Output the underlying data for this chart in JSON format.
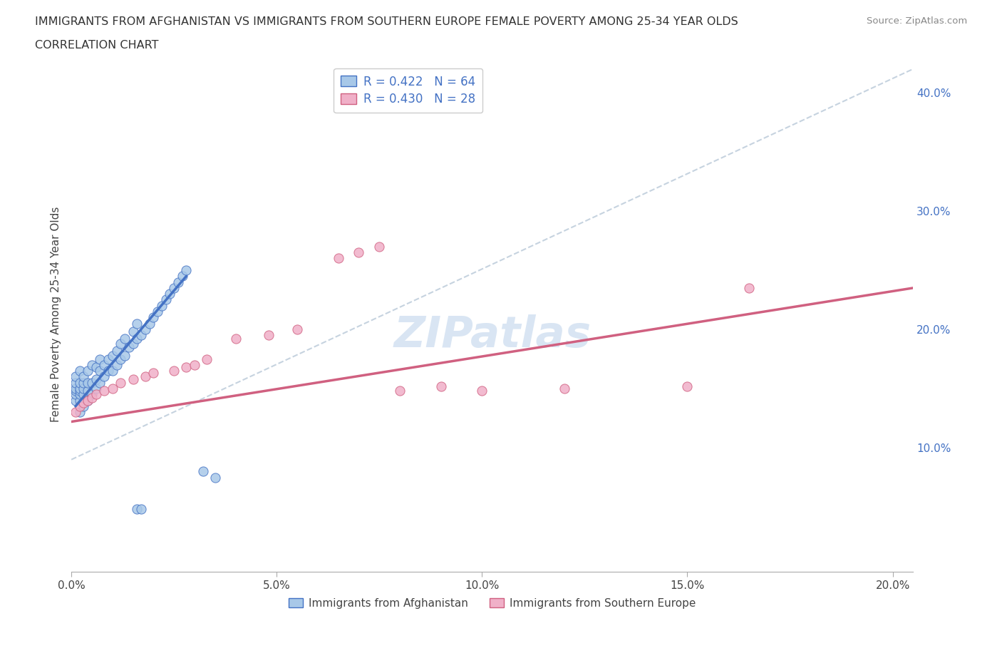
{
  "title_line1": "IMMIGRANTS FROM AFGHANISTAN VS IMMIGRANTS FROM SOUTHERN EUROPE FEMALE POVERTY AMONG 25-34 YEAR OLDS",
  "title_line2": "CORRELATION CHART",
  "source_text": "Source: ZipAtlas.com",
  "ylabel": "Female Poverty Among 25-34 Year Olds",
  "xlim": [
    0.0,
    0.205
  ],
  "ylim": [
    -0.005,
    0.43
  ],
  "xticks": [
    0.0,
    0.05,
    0.1,
    0.15,
    0.2
  ],
  "yticks": [
    0.1,
    0.2,
    0.3,
    0.4
  ],
  "ytick_labels": [
    "10.0%",
    "20.0%",
    "30.0%",
    "40.0%"
  ],
  "xtick_labels": [
    "0.0%",
    "5.0%",
    "10.0%",
    "15.0%",
    "20.0%"
  ],
  "r_afghanistan": 0.422,
  "n_afghanistan": 64,
  "r_southern_europe": 0.43,
  "n_southern_europe": 28,
  "color_afghanistan": "#a8c8e8",
  "color_southern_europe": "#f0b0c8",
  "color_trend_afghanistan": "#4472C4",
  "color_trend_southern_europe": "#d06080",
  "color_dashed": "#b8c8d8",
  "watermark": "ZIPatlas",
  "legend_label_1": "Immigrants from Afghanistan",
  "legend_label_2": "Immigrants from Southern Europe",
  "afg_x": [
    0.001,
    0.001,
    0.001,
    0.001,
    0.001,
    0.001,
    0.002,
    0.002,
    0.002,
    0.002,
    0.002,
    0.002,
    0.002,
    0.003,
    0.003,
    0.003,
    0.003,
    0.003,
    0.004,
    0.004,
    0.004,
    0.004,
    0.005,
    0.005,
    0.005,
    0.006,
    0.006,
    0.006,
    0.007,
    0.007,
    0.007,
    0.008,
    0.008,
    0.009,
    0.009,
    0.01,
    0.01,
    0.011,
    0.011,
    0.012,
    0.012,
    0.013,
    0.013,
    0.014,
    0.015,
    0.015,
    0.016,
    0.016,
    0.017,
    0.018,
    0.019,
    0.02,
    0.021,
    0.022,
    0.023,
    0.024,
    0.025,
    0.026,
    0.027,
    0.028,
    0.016,
    0.017,
    0.032,
    0.035
  ],
  "afg_y": [
    0.14,
    0.145,
    0.148,
    0.15,
    0.155,
    0.16,
    0.13,
    0.14,
    0.145,
    0.148,
    0.15,
    0.155,
    0.165,
    0.135,
    0.145,
    0.15,
    0.155,
    0.16,
    0.14,
    0.148,
    0.155,
    0.165,
    0.145,
    0.155,
    0.17,
    0.15,
    0.158,
    0.168,
    0.155,
    0.165,
    0.175,
    0.16,
    0.17,
    0.165,
    0.175,
    0.165,
    0.178,
    0.17,
    0.182,
    0.175,
    0.188,
    0.178,
    0.192,
    0.185,
    0.188,
    0.198,
    0.192,
    0.205,
    0.195,
    0.2,
    0.205,
    0.21,
    0.215,
    0.22,
    0.225,
    0.23,
    0.235,
    0.24,
    0.245,
    0.25,
    0.048,
    0.048,
    0.08,
    0.075
  ],
  "seu_x": [
    0.001,
    0.002,
    0.003,
    0.004,
    0.005,
    0.006,
    0.008,
    0.01,
    0.012,
    0.015,
    0.018,
    0.02,
    0.025,
    0.028,
    0.03,
    0.033,
    0.04,
    0.048,
    0.055,
    0.065,
    0.07,
    0.075,
    0.08,
    0.09,
    0.1,
    0.12,
    0.15,
    0.165
  ],
  "seu_y": [
    0.13,
    0.135,
    0.138,
    0.14,
    0.142,
    0.145,
    0.148,
    0.15,
    0.155,
    0.158,
    0.16,
    0.163,
    0.165,
    0.168,
    0.17,
    0.175,
    0.192,
    0.195,
    0.2,
    0.26,
    0.265,
    0.27,
    0.148,
    0.152,
    0.148,
    0.15,
    0.152,
    0.235
  ],
  "afg_line_x": [
    0.001,
    0.028
  ],
  "afg_line_y": [
    0.135,
    0.245
  ],
  "seu_line_x": [
    0.0,
    0.205
  ],
  "seu_line_y": [
    0.122,
    0.235
  ],
  "dash_line_x": [
    0.0,
    0.205
  ],
  "dash_line_y": [
    0.09,
    0.42
  ]
}
